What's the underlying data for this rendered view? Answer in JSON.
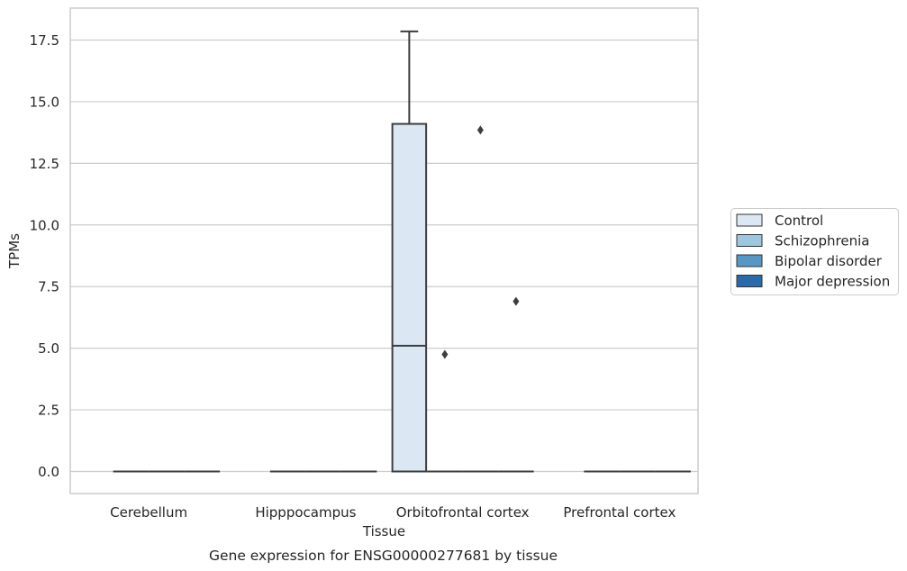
{
  "chart_data": {
    "type": "box",
    "xlabel": "Tissue",
    "ylabel": "TPMs",
    "caption": "Gene expression for ENSG00000277681 by tissue",
    "ylim": [
      -0.9,
      18.7
    ],
    "yticks": [
      "0.0",
      "2.5",
      "5.0",
      "7.5",
      "10.0",
      "12.5",
      "15.0",
      "17.5"
    ],
    "ytick_values": [
      0,
      2.5,
      5,
      7.5,
      10,
      12.5,
      15,
      17.5
    ],
    "grid": true,
    "legend_position": "right",
    "categories": [
      "Cerebellum",
      "Hipppocampus",
      "Orbitofrontal cortex",
      "Prefrontal cortex"
    ],
    "series": [
      {
        "name": "Control",
        "color": "#dbe8f4",
        "boxes": [
          null,
          null,
          {
            "q1": 0,
            "median": 5.1,
            "q3": 14.1,
            "whisker_low": 0,
            "whisker_high": 17.85,
            "outliers": []
          },
          null
        ]
      },
      {
        "name": "Schizophrenia",
        "color": "#9ac8e0",
        "boxes": [
          {
            "q1": 0,
            "median": 0,
            "q3": 0,
            "whisker_low": 0,
            "whisker_high": 0,
            "outliers": []
          },
          {
            "q1": 0,
            "median": 0,
            "q3": 0,
            "whisker_low": 0,
            "whisker_high": 0,
            "outliers": []
          },
          {
            "q1": 0,
            "median": 0,
            "q3": 0,
            "whisker_low": 0,
            "whisker_high": 0,
            "outliers": [
              4.75
            ]
          },
          {
            "q1": 0,
            "median": 0,
            "q3": 0,
            "whisker_low": 0,
            "whisker_high": 0,
            "outliers": []
          }
        ]
      },
      {
        "name": "Bipolar disorder",
        "color": "#5597c6",
        "boxes": [
          {
            "q1": 0,
            "median": 0,
            "q3": 0,
            "whisker_low": 0,
            "whisker_high": 0,
            "outliers": []
          },
          {
            "q1": 0,
            "median": 0,
            "q3": 0,
            "whisker_low": 0,
            "whisker_high": 0,
            "outliers": []
          },
          {
            "q1": 0,
            "median": 0,
            "q3": 0,
            "whisker_low": 0,
            "whisker_high": 0,
            "outliers": [
              13.85
            ]
          },
          {
            "q1": 0,
            "median": 0,
            "q3": 0,
            "whisker_low": 0,
            "whisker_high": 0,
            "outliers": []
          }
        ]
      },
      {
        "name": "Major depression",
        "color": "#2b6aa9",
        "boxes": [
          {
            "q1": 0,
            "median": 0,
            "q3": 0,
            "whisker_low": 0,
            "whisker_high": 0,
            "outliers": []
          },
          {
            "q1": 0,
            "median": 0,
            "q3": 0,
            "whisker_low": 0,
            "whisker_high": 0,
            "outliers": []
          },
          {
            "q1": 0,
            "median": 0,
            "q3": 0,
            "whisker_low": 0,
            "whisker_high": 0,
            "outliers": [
              6.9
            ]
          },
          {
            "q1": 0,
            "median": 0,
            "q3": 0,
            "whisker_low": 0,
            "whisker_high": 0,
            "outliers": []
          }
        ]
      }
    ]
  }
}
